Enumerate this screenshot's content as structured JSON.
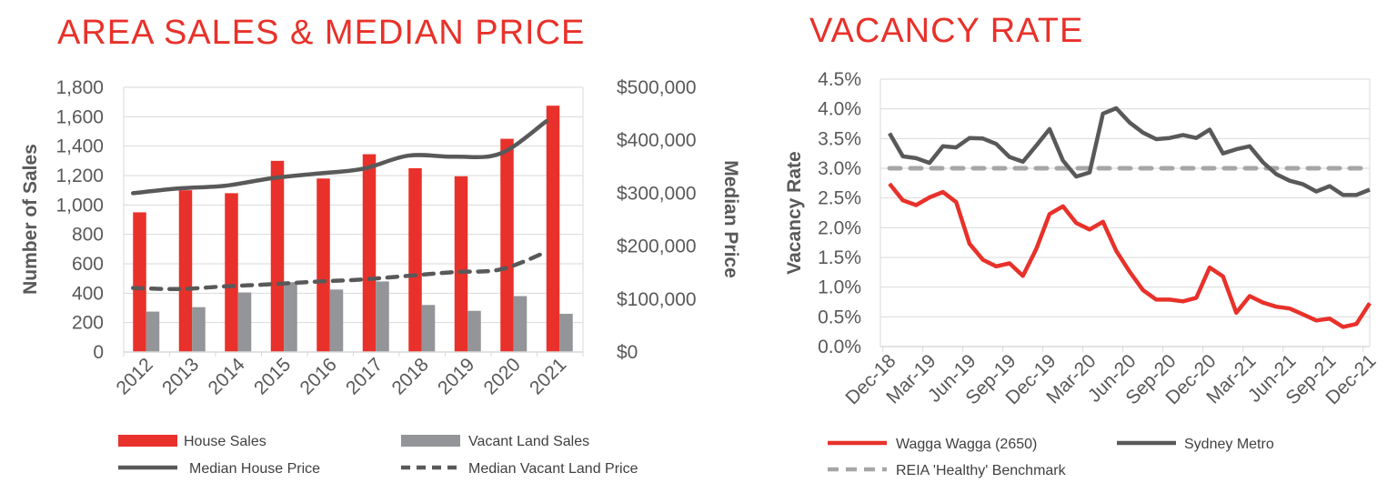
{
  "colors": {
    "red": "#e8312a",
    "grey": "#939598",
    "dark": "#595959",
    "bench": "#a6a6a6",
    "grid": "#d9d9d9"
  },
  "chart_data": [
    {
      "type": "bar",
      "title": "AREA SALES & MEDIAN PRICE",
      "categories": [
        "2012",
        "2013",
        "2014",
        "2015",
        "2016",
        "2017",
        "2018",
        "2019",
        "2020",
        "2021"
      ],
      "ylabel": "Number of Sales",
      "ylim": [
        0,
        1800
      ],
      "yticks": [
        "0",
        "200",
        "400",
        "600",
        "800",
        "1,000",
        "1,200",
        "1,400",
        "1,600",
        "1,800"
      ],
      "y2label": "Median Price",
      "y2lim": [
        0,
        500000
      ],
      "y2ticks": [
        "$0",
        "$100,000",
        "$200,000",
        "$300,000",
        "$400,000",
        "$500,000"
      ],
      "grid": true,
      "legend": "bottom",
      "series": [
        {
          "name": "House Sales",
          "kind": "bar",
          "axis": "left",
          "values": [
            950,
            1100,
            1080,
            1300,
            1180,
            1345,
            1250,
            1195,
            1450,
            1675
          ]
        },
        {
          "name": "Vacant Land Sales",
          "kind": "bar",
          "axis": "left",
          "values": [
            275,
            305,
            405,
            475,
            425,
            480,
            320,
            280,
            380,
            260
          ]
        },
        {
          "name": "Median House Price",
          "kind": "line",
          "axis": "right",
          "values": [
            300000,
            309000,
            314000,
            328000,
            337000,
            346000,
            371000,
            369000,
            375000,
            436000
          ]
        },
        {
          "name": "Median Vacant Land Price",
          "kind": "dashed-line",
          "axis": "right",
          "values": [
            121000,
            119000,
            124000,
            128000,
            133000,
            137000,
            144000,
            151000,
            156000,
            189000
          ]
        }
      ]
    },
    {
      "type": "line",
      "title": "VACANCY RATE",
      "ylabel": "Vacancy Rate",
      "ylim": [
        0,
        4.5
      ],
      "yticks": [
        "0.0%",
        "0.5%",
        "1.0%",
        "1.5%",
        "2.0%",
        "2.5%",
        "3.0%",
        "3.5%",
        "4.0%",
        "4.5%"
      ],
      "xlabels": [
        "Dec-18",
        "Mar-19",
        "Jun-19",
        "Sep-19",
        "Dec-19",
        "Mar-20",
        "Jun-20",
        "Sep-20",
        "Dec-20",
        "Mar-21",
        "Jun-21",
        "Sep-21",
        "Dec-21"
      ],
      "x_range": [
        "Dec-18",
        "Dec-21"
      ],
      "x_frequency": "monthly",
      "grid": true,
      "legend": "bottom",
      "series": [
        {
          "name": "Wagga Wagga (2650)",
          "values": [
            2.74,
            2.46,
            2.38,
            2.51,
            2.6,
            2.43,
            1.73,
            1.46,
            1.35,
            1.4,
            1.19,
            1.64,
            2.23,
            2.36,
            2.08,
            1.97,
            2.1,
            1.61,
            1.26,
            0.95,
            0.79,
            0.79,
            0.76,
            0.82,
            1.33,
            1.18,
            0.57,
            0.85,
            0.74,
            0.67,
            0.64,
            0.54,
            0.44,
            0.47,
            0.33,
            0.38,
            0.73
          ]
        },
        {
          "name": "Sydney Metro",
          "values": [
            3.59,
            3.2,
            3.17,
            3.09,
            3.37,
            3.35,
            3.51,
            3.5,
            3.41,
            3.19,
            3.11,
            3.38,
            3.66,
            3.13,
            2.86,
            2.93,
            3.92,
            4.01,
            3.77,
            3.6,
            3.49,
            3.51,
            3.56,
            3.51,
            3.65,
            3.25,
            3.32,
            3.37,
            3.1,
            2.9,
            2.79,
            2.73,
            2.61,
            2.7,
            2.55,
            2.55,
            2.64
          ]
        },
        {
          "name": "REIA 'Healthy' Benchmark",
          "values": [
            3.0,
            3.0
          ]
        }
      ]
    }
  ]
}
